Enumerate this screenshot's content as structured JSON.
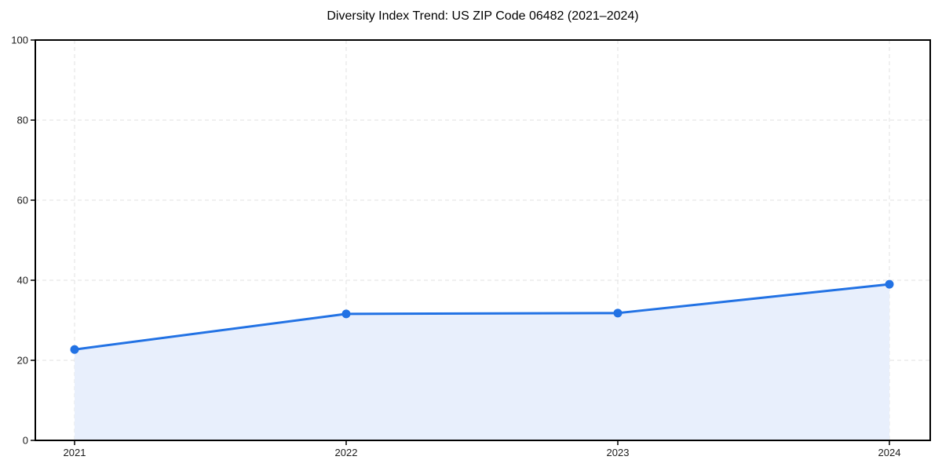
{
  "chart_data": {
    "type": "area",
    "title": "Diversity Index Trend: US ZIP Code 06482 (2021–2024)",
    "categories": [
      "2021",
      "2022",
      "2023",
      "2024"
    ],
    "series": [
      {
        "name": "Diversity Index",
        "values": [
          22.7,
          31.6,
          31.8,
          39.0
        ]
      }
    ],
    "xlabel": "",
    "ylabel": "",
    "ylim": [
      0,
      100
    ],
    "yticks": [
      0,
      20,
      40,
      60,
      80,
      100
    ],
    "grid": true,
    "grid_style": "dashed",
    "legend": "none",
    "marker": "circle",
    "colors": {
      "line": "#2272e4",
      "marker": "#2272e4",
      "area_fill": "#e8effc",
      "grid": "#e2e2e2",
      "spine": "#000000",
      "tick": "#000000",
      "tick_label": "#1a1a1a",
      "title": "#000000",
      "background": "#ffffff"
    }
  }
}
